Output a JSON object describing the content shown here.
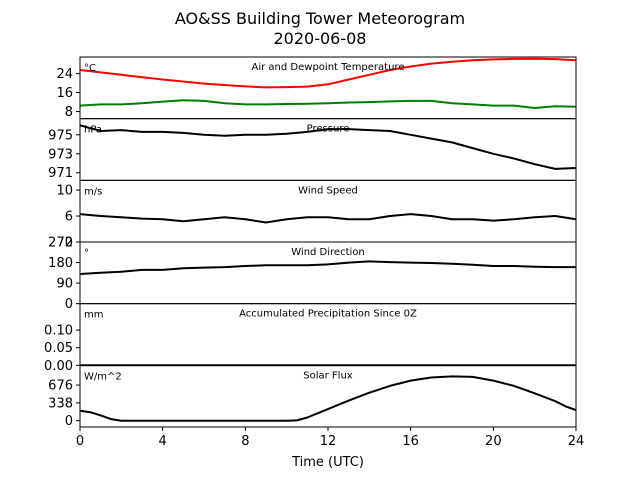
{
  "figure": {
    "title_line1": "AO&SS Building Tower Meteorogram",
    "title_line2": "2020-06-08",
    "xlabel": "Time (UTC)",
    "x_ticks": [
      0,
      4,
      8,
      12,
      16,
      20,
      24
    ],
    "x_range": [
      0,
      24
    ]
  },
  "chart_data": [
    {
      "type": "line",
      "panel": "temperature",
      "title": "Air and Dewpoint Temperature",
      "unit": "°C",
      "ylim": [
        5,
        31
      ],
      "yticks": [
        8,
        16,
        24
      ],
      "series": [
        {
          "color": "#ff0000",
          "x": [
            0,
            2,
            4,
            6,
            8,
            9,
            10,
            11,
            12,
            13,
            14,
            15,
            16,
            17,
            18,
            19,
            20,
            21,
            22,
            23,
            24
          ],
          "y": [
            25.5,
            23.5,
            21.5,
            19.8,
            18.6,
            18.2,
            18.3,
            18.5,
            19.5,
            21.5,
            23.5,
            25.5,
            27.0,
            28.2,
            29.0,
            29.6,
            30.0,
            30.2,
            30.3,
            30.1,
            29.6
          ]
        },
        {
          "color": "#008000",
          "x": [
            0,
            1,
            2,
            3,
            4,
            5,
            6,
            7,
            8,
            9,
            10,
            11,
            12,
            13,
            14,
            15,
            16,
            17,
            18,
            19,
            20,
            21,
            22,
            23,
            24
          ],
          "y": [
            10.5,
            11.0,
            11.0,
            11.5,
            12.2,
            12.8,
            12.5,
            11.5,
            11.0,
            11.0,
            11.2,
            11.3,
            11.5,
            11.8,
            12.0,
            12.3,
            12.5,
            12.5,
            11.5,
            11.0,
            10.5,
            10.5,
            9.5,
            10.2,
            10.0
          ]
        }
      ]
    },
    {
      "type": "line",
      "panel": "pressure",
      "title": "Pressure",
      "unit": "hPa",
      "ylim": [
        970.2,
        976.7
      ],
      "yticks": [
        971,
        973,
        975
      ],
      "series": [
        {
          "color": "#000000",
          "x": [
            0,
            1,
            2,
            3,
            4,
            5,
            6,
            7,
            8,
            9,
            10,
            11,
            12,
            13,
            14,
            15,
            16,
            17,
            18,
            19,
            20,
            21,
            22,
            23,
            24
          ],
          "y": [
            976.0,
            975.4,
            975.5,
            975.3,
            975.3,
            975.2,
            975.0,
            974.9,
            975.0,
            975.0,
            975.1,
            975.3,
            975.6,
            975.6,
            975.5,
            975.4,
            975.0,
            974.6,
            974.2,
            973.6,
            973.0,
            972.5,
            971.9,
            971.4,
            971.5
          ]
        }
      ]
    },
    {
      "type": "line",
      "panel": "wind_speed",
      "title": "Wind Speed",
      "unit": "m/s",
      "ylim": [
        2,
        11.5
      ],
      "yticks": [
        2,
        6,
        10
      ],
      "series": [
        {
          "color": "#000000",
          "x": [
            0,
            1,
            2,
            3,
            4,
            5,
            6,
            7,
            8,
            9,
            10,
            11,
            12,
            13,
            14,
            15,
            16,
            17,
            18,
            19,
            20,
            21,
            22,
            23,
            24
          ],
          "y": [
            6.3,
            6.0,
            5.8,
            5.6,
            5.5,
            5.2,
            5.5,
            5.8,
            5.5,
            5.0,
            5.5,
            5.8,
            5.8,
            5.5,
            5.5,
            6.0,
            6.3,
            6.0,
            5.5,
            5.5,
            5.3,
            5.5,
            5.8,
            6.0,
            5.5
          ]
        }
      ]
    },
    {
      "type": "line",
      "panel": "wind_direction",
      "title": "Wind Direction",
      "unit": "°",
      "ylim": [
        0,
        270
      ],
      "yticks": [
        0,
        90,
        180,
        270
      ],
      "series": [
        {
          "color": "#000000",
          "x": [
            0,
            1,
            2,
            3,
            4,
            5,
            6,
            7,
            8,
            9,
            10,
            11,
            12,
            13,
            14,
            15,
            16,
            17,
            18,
            19,
            20,
            21,
            22,
            23,
            24
          ],
          "y": [
            130,
            135,
            140,
            148,
            148,
            155,
            158,
            160,
            165,
            168,
            168,
            168,
            172,
            180,
            185,
            182,
            180,
            178,
            175,
            170,
            165,
            165,
            162,
            160,
            160
          ]
        }
      ]
    },
    {
      "type": "line",
      "panel": "precipitation",
      "title": "Accumulated Precipitation Since 0Z",
      "unit": "mm",
      "ylim": [
        0,
        0.175
      ],
      "yticks": [
        0.0,
        0.05,
        0.1
      ],
      "ytick_labels": [
        "0.00",
        "0.05",
        "0.10"
      ],
      "series": [
        {
          "color": "#000000",
          "x": [
            0,
            24
          ],
          "y": [
            0,
            0
          ]
        }
      ]
    },
    {
      "type": "line",
      "panel": "solar_flux",
      "title": "Solar Flux",
      "unit": "W/m^2",
      "ylim": [
        -120,
        1050
      ],
      "yticks": [
        0,
        338,
        676
      ],
      "series": [
        {
          "color": "#000000",
          "x": [
            0,
            0.5,
            1,
            1.5,
            2,
            4,
            6,
            8,
            10,
            10.5,
            11,
            12,
            13,
            14,
            15,
            16,
            17,
            18,
            19,
            20,
            21,
            22,
            23,
            23.5,
            24
          ],
          "y": [
            190,
            160,
            100,
            30,
            0,
            0,
            0,
            0,
            0,
            5,
            60,
            220,
            380,
            530,
            660,
            760,
            820,
            840,
            830,
            760,
            660,
            520,
            370,
            270,
            200
          ]
        }
      ]
    }
  ]
}
